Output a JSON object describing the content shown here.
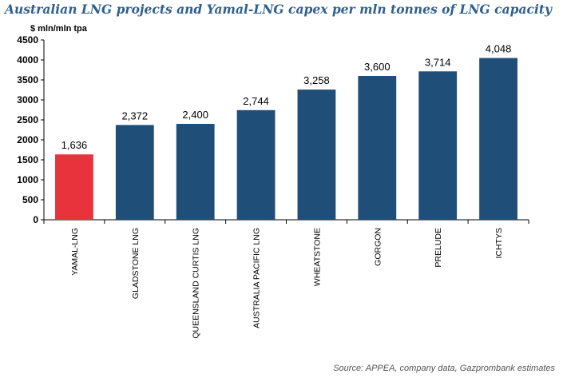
{
  "header": {
    "title": "Australian LNG projects and Yamal-LNG capex per mln tonnes of LNG capacity"
  },
  "footer": {
    "source": "Source: APPEA, company data, Gazprombank estimates"
  },
  "colors": {
    "bar_default": "#1f4e79",
    "bar_highlight": "#e8333c",
    "title": "#2e5f8f"
  },
  "chart_data": {
    "type": "bar",
    "title": "",
    "ylabel": "$ mln/mln tpa",
    "xlabel": "",
    "ylim": [
      0,
      4500
    ],
    "yticks": [
      0,
      500,
      1000,
      1500,
      2000,
      2500,
      3000,
      3500,
      4000,
      4500
    ],
    "categories": [
      "YAMAL-LNG",
      "GLADSTONE LNG",
      "QUEENSLAND CURTIS LNG",
      "AUSTRALIA PACIFIC LNG",
      "WHEATSTONE",
      "GORGON",
      "PRELUDE",
      "ICHTYS"
    ],
    "values": [
      1636,
      2372,
      2400,
      2744,
      3258,
      3600,
      3714,
      4048
    ],
    "value_labels": [
      "1,636",
      "2,372",
      "2,400",
      "2,744",
      "3,258",
      "3,600",
      "3,714",
      "4,048"
    ],
    "highlight": "YAMAL-LNG",
    "grid": false,
    "legend": "none"
  }
}
